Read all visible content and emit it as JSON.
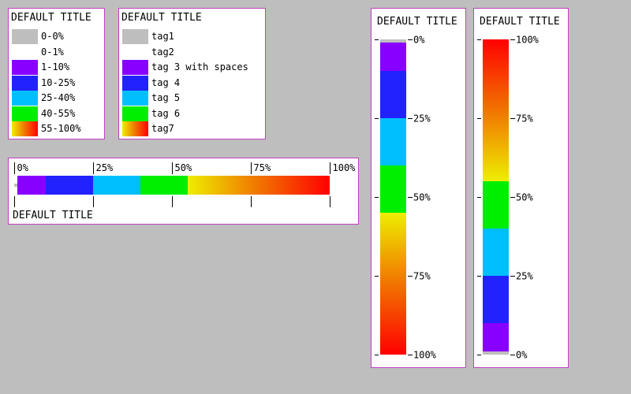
{
  "colors": {
    "gray": "#bebebe",
    "white": "#ffffff",
    "purple": "#8800ff",
    "blue": "#2222ff",
    "cyan": "#00bfff",
    "green": "#00ee00",
    "yellow": "#eeee00",
    "orange": "#f08000",
    "red": "#ff0000",
    "border": "#c040c0"
  },
  "legend1": {
    "title": "DEFAULT TITLE",
    "items": [
      {
        "label": "0-0%",
        "color": "gray"
      },
      {
        "label": "0-1%",
        "color": "white"
      },
      {
        "label": "1-10%",
        "color": "purple"
      },
      {
        "label": "10-25%",
        "color": "blue"
      },
      {
        "label": "25-40%",
        "color": "cyan"
      },
      {
        "label": "40-55%",
        "color": "green"
      },
      {
        "label": "55-100%",
        "color": "gradient"
      }
    ]
  },
  "legend2": {
    "title": "DEFAULT TITLE",
    "items": [
      {
        "label": "tag1",
        "color": "gray"
      },
      {
        "label": "tag2",
        "color": "white"
      },
      {
        "label": "tag 3 with spaces",
        "color": "purple"
      },
      {
        "label": "tag 4",
        "color": "blue"
      },
      {
        "label": "tag 5",
        "color": "cyan"
      },
      {
        "label": "tag 6",
        "color": "green"
      },
      {
        "label": "tag7",
        "color": "gradient"
      }
    ]
  },
  "chart_data": [
    {
      "type": "colorbar",
      "orientation": "horizontal",
      "title": "DEFAULT TITLE",
      "range": [
        0,
        100
      ],
      "ticks": [
        0,
        25,
        50,
        75,
        100
      ],
      "tick_labels": [
        "0%",
        "25%",
        "50%",
        "75%",
        "100%"
      ],
      "bands": [
        {
          "from": 0,
          "to": 1,
          "color": "gray"
        },
        {
          "from": 1,
          "to": 10,
          "color": "purple"
        },
        {
          "from": 10,
          "to": 25,
          "color": "blue"
        },
        {
          "from": 25,
          "to": 40,
          "color": "cyan"
        },
        {
          "from": 40,
          "to": 55,
          "color": "green"
        },
        {
          "from": 55,
          "to": 100,
          "color": "gradient"
        }
      ]
    },
    {
      "type": "colorbar",
      "orientation": "vertical",
      "direction": "top-to-bottom",
      "title": "DEFAULT TITLE",
      "range": [
        0,
        100
      ],
      "ticks": [
        0,
        25,
        50,
        75,
        100
      ],
      "tick_labels": [
        "0%",
        "25%",
        "50%",
        "75%",
        "100%"
      ],
      "bands": [
        {
          "from": 0,
          "to": 1,
          "color": "gray"
        },
        {
          "from": 1,
          "to": 10,
          "color": "purple"
        },
        {
          "from": 10,
          "to": 25,
          "color": "blue"
        },
        {
          "from": 25,
          "to": 40,
          "color": "cyan"
        },
        {
          "from": 40,
          "to": 55,
          "color": "green"
        },
        {
          "from": 55,
          "to": 100,
          "color": "gradient"
        }
      ]
    },
    {
      "type": "colorbar",
      "orientation": "vertical",
      "direction": "bottom-to-top",
      "title": "DEFAULT TITLE",
      "range": [
        0,
        100
      ],
      "ticks": [
        0,
        25,
        50,
        75,
        100
      ],
      "tick_labels": [
        "0%",
        "25%",
        "50%",
        "75%",
        "100%"
      ],
      "bands": [
        {
          "from": 0,
          "to": 1,
          "color": "gray"
        },
        {
          "from": 1,
          "to": 10,
          "color": "purple"
        },
        {
          "from": 10,
          "to": 25,
          "color": "blue"
        },
        {
          "from": 25,
          "to": 40,
          "color": "cyan"
        },
        {
          "from": 40,
          "to": 55,
          "color": "green"
        },
        {
          "from": 55,
          "to": 100,
          "color": "gradient"
        }
      ]
    }
  ]
}
